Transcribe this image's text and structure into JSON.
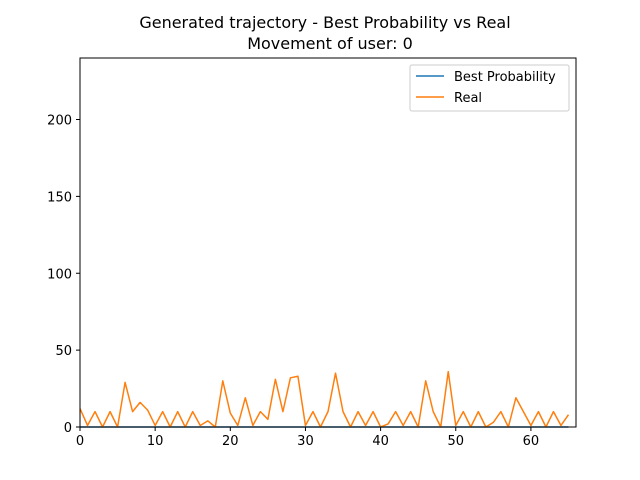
{
  "chart_data": {
    "type": "line",
    "title": "Generated trajectory - Best Probability vs Real",
    "subtitle": "Movement of user: 0",
    "xlabel": "",
    "ylabel": "",
    "xlim": [
      0,
      66
    ],
    "ylim": [
      0,
      240
    ],
    "xticks": [
      0,
      10,
      20,
      30,
      40,
      50,
      60
    ],
    "yticks": [
      0,
      50,
      100,
      150,
      200
    ],
    "grid": false,
    "legend_position": "top-right",
    "x": [
      0,
      1,
      2,
      3,
      4,
      5,
      6,
      7,
      8,
      9,
      10,
      11,
      12,
      13,
      14,
      15,
      16,
      17,
      18,
      19,
      20,
      21,
      22,
      23,
      24,
      25,
      26,
      27,
      28,
      29,
      30,
      31,
      32,
      33,
      34,
      35,
      36,
      37,
      38,
      39,
      40,
      41,
      42,
      43,
      44,
      45,
      46,
      47,
      48,
      49,
      50,
      51,
      52,
      53,
      54,
      55,
      56,
      57,
      58,
      59,
      60,
      61,
      62,
      63,
      64,
      65
    ],
    "series": [
      {
        "name": "Best Probability",
        "color": "#1f77b4",
        "values": [
          0,
          0,
          0,
          0,
          0,
          0,
          0,
          0,
          0,
          0,
          0,
          0,
          0,
          0,
          0,
          0,
          0,
          0,
          0,
          0,
          0,
          0,
          0,
          0,
          0,
          0,
          0,
          0,
          0,
          0,
          0,
          0,
          0,
          0,
          0,
          0,
          0,
          0,
          0,
          0,
          0,
          0,
          0,
          0,
          0,
          0,
          0,
          0,
          0,
          0,
          0,
          0,
          0,
          0,
          0,
          0,
          0,
          0,
          0,
          0,
          0,
          0,
          0,
          0,
          0,
          0
        ]
      },
      {
        "name": "Real",
        "color": "#ff7f0e",
        "values": [
          12,
          1,
          10,
          0,
          10,
          0,
          29,
          10,
          16,
          11,
          1,
          10,
          0,
          10,
          0,
          10,
          1,
          4,
          0,
          30,
          9,
          1,
          19,
          1,
          10,
          5,
          31,
          10,
          32,
          33,
          1,
          10,
          0,
          10,
          35,
          10,
          0,
          10,
          1,
          10,
          0,
          2,
          10,
          1,
          10,
          0,
          30,
          10,
          0,
          36,
          1,
          10,
          0,
          10,
          0,
          3,
          10,
          0,
          19,
          10,
          1,
          10,
          0,
          10,
          1,
          8
        ]
      }
    ]
  }
}
